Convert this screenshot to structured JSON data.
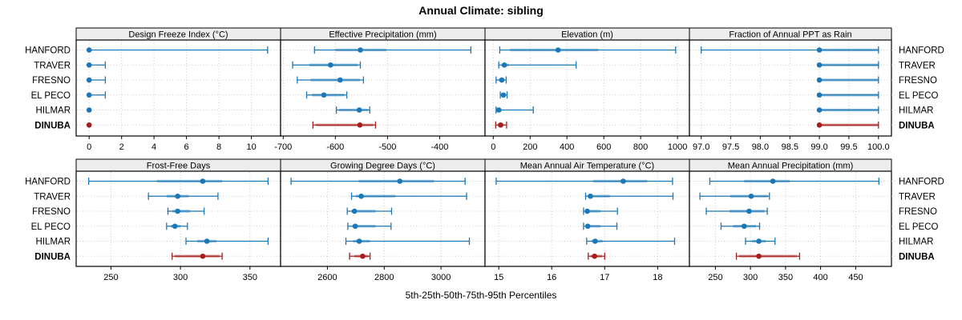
{
  "title": "Annual Climate: sibling",
  "caption": "5th-25th-50th-75th-95th Percentiles",
  "stations": [
    "HANFORD",
    "TRAVER",
    "FRESNO",
    "EL PECO",
    "HILMAR",
    "DINUBA"
  ],
  "highlight_station": "DINUBA",
  "percentiles": [
    5,
    25,
    50,
    75,
    95
  ],
  "colors": {
    "series": "#1b77b5",
    "highlight": "#a61e1e",
    "strip_bg": "#ededed",
    "panel_bg": "#ffffff",
    "border": "#000000",
    "grid": "#c9c9c9"
  },
  "chart_data": [
    {
      "type": "scatter",
      "subtype": "percentile-dot-whisker",
      "row": 0,
      "col": 0,
      "title": "Design Freeze Index (°C)",
      "xlim": [
        -0.8,
        11.8
      ],
      "xticks": [
        0,
        2,
        4,
        6,
        8,
        10
      ],
      "xtick_labels": [
        "0",
        "2",
        "4",
        "6",
        "8",
        "10"
      ],
      "series": [
        {
          "station": "HANFORD",
          "values": [
            0,
            0,
            0,
            0,
            11
          ]
        },
        {
          "station": "TRAVER",
          "values": [
            0,
            0,
            0,
            0,
            1
          ]
        },
        {
          "station": "FRESNO",
          "values": [
            0,
            0,
            0,
            0,
            1
          ]
        },
        {
          "station": "EL PECO",
          "values": [
            0,
            0,
            0,
            0,
            1
          ]
        },
        {
          "station": "HILMAR",
          "values": [
            0,
            0,
            0,
            0,
            0
          ]
        },
        {
          "station": "DINUBA",
          "values": [
            0,
            0,
            0,
            0,
            0
          ]
        }
      ]
    },
    {
      "type": "scatter",
      "subtype": "percentile-dot-whisker",
      "row": 0,
      "col": 1,
      "title": "Effective Precipitation (mm)",
      "xlim": [
        -705,
        -313
      ],
      "xticks": [
        -700,
        -600,
        -500,
        -400
      ],
      "xtick_labels": [
        "-700",
        "-600",
        "-500",
        "-400"
      ],
      "series": [
        {
          "station": "HANFORD",
          "values": [
            -640,
            -600,
            -552,
            -502,
            -340
          ]
        },
        {
          "station": "TRAVER",
          "values": [
            -682,
            -650,
            -609,
            -557,
            -552
          ]
        },
        {
          "station": "FRESNO",
          "values": [
            -673,
            -648,
            -591,
            -553,
            -546
          ]
        },
        {
          "station": "EL PECO",
          "values": [
            -655,
            -645,
            -622,
            -583,
            -578
          ]
        },
        {
          "station": "HILMAR",
          "values": [
            -598,
            -593,
            -554,
            -537,
            -534
          ]
        },
        {
          "station": "DINUBA",
          "values": [
            -643,
            -637,
            -553,
            -527,
            -523
          ]
        }
      ]
    },
    {
      "type": "scatter",
      "subtype": "percentile-dot-whisker",
      "row": 0,
      "col": 2,
      "title": "Elevation (m)",
      "xlim": [
        -45,
        1065
      ],
      "xticks": [
        0,
        200,
        400,
        600,
        800,
        1000
      ],
      "xtick_labels": [
        "0",
        "200",
        "400",
        "600",
        "800",
        "1000"
      ],
      "series": [
        {
          "station": "HANFORD",
          "values": [
            35,
            90,
            352,
            570,
            990
          ]
        },
        {
          "station": "TRAVER",
          "values": [
            30,
            48,
            60,
            85,
            450
          ]
        },
        {
          "station": "FRESNO",
          "values": [
            15,
            30,
            46,
            60,
            70
          ]
        },
        {
          "station": "EL PECO",
          "values": [
            38,
            48,
            55,
            65,
            75
          ]
        },
        {
          "station": "HILMAR",
          "values": [
            15,
            23,
            30,
            45,
            217
          ]
        },
        {
          "station": "DINUBA",
          "values": [
            13,
            25,
            40,
            55,
            72
          ]
        }
      ]
    },
    {
      "type": "scatter",
      "subtype": "percentile-dot-whisker",
      "row": 0,
      "col": 3,
      "title": "Fraction of Annual PPT as Rain",
      "xlim": [
        96.8,
        100.22
      ],
      "xticks": [
        97.0,
        97.5,
        98.0,
        98.5,
        99.0,
        99.5,
        100.0
      ],
      "xtick_labels": [
        "97.0",
        "97.5",
        "98.0",
        "98.5",
        "99.0",
        "99.5",
        "100.0"
      ],
      "series": [
        {
          "station": "HANFORD",
          "values": [
            97.0,
            99.0,
            99.0,
            100.0,
            100.0
          ]
        },
        {
          "station": "TRAVER",
          "values": [
            99.0,
            99.0,
            99.0,
            100.0,
            100.0
          ]
        },
        {
          "station": "FRESNO",
          "values": [
            99.0,
            99.0,
            99.0,
            100.0,
            100.0
          ]
        },
        {
          "station": "EL PECO",
          "values": [
            99.0,
            99.0,
            99.0,
            100.0,
            100.0
          ]
        },
        {
          "station": "HILMAR",
          "values": [
            99.0,
            99.0,
            99.0,
            100.0,
            100.0
          ]
        },
        {
          "station": "DINUBA",
          "values": [
            99.0,
            99.0,
            99.0,
            100.0,
            100.0
          ]
        }
      ]
    },
    {
      "type": "scatter",
      "subtype": "percentile-dot-whisker",
      "row": 1,
      "col": 0,
      "title": "Frost-Free Days",
      "xlim": [
        225,
        372
      ],
      "xticks": [
        250,
        300,
        350
      ],
      "xtick_labels": [
        "250",
        "300",
        "350"
      ],
      "series": [
        {
          "station": "HANFORD",
          "values": [
            234,
            283,
            316,
            330,
            363
          ]
        },
        {
          "station": "TRAVER",
          "values": [
            277,
            290,
            298,
            306,
            327
          ]
        },
        {
          "station": "FRESNO",
          "values": [
            291,
            294,
            298,
            307,
            317
          ]
        },
        {
          "station": "EL PECO",
          "values": [
            290,
            293,
            296,
            300,
            305
          ]
        },
        {
          "station": "HILMAR",
          "values": [
            304,
            312,
            319,
            326,
            363
          ]
        },
        {
          "station": "DINUBA",
          "values": [
            294,
            296,
            316,
            328,
            330
          ]
        }
      ]
    },
    {
      "type": "scatter",
      "subtype": "percentile-dot-whisker",
      "row": 1,
      "col": 1,
      "title": "Growing Degree Days (°C)",
      "xlim": [
        2435,
        3155
      ],
      "xticks": [
        2600,
        2800,
        3000
      ],
      "xtick_labels": [
        "2600",
        "2800",
        "3000"
      ],
      "series": [
        {
          "station": "HANFORD",
          "values": [
            2472,
            2710,
            2855,
            2975,
            3085
          ]
        },
        {
          "station": "TRAVER",
          "values": [
            2685,
            2700,
            2719,
            2840,
            3090
          ]
        },
        {
          "station": "FRESNO",
          "values": [
            2670,
            2685,
            2695,
            2770,
            2826
          ]
        },
        {
          "station": "EL PECO",
          "values": [
            2672,
            2688,
            2698,
            2770,
            2824
          ]
        },
        {
          "station": "HILMAR",
          "values": [
            2665,
            2690,
            2712,
            2750,
            3100
          ]
        },
        {
          "station": "DINUBA",
          "values": [
            2678,
            2695,
            2724,
            2745,
            2750
          ]
        }
      ]
    },
    {
      "type": "scatter",
      "subtype": "percentile-dot-whisker",
      "row": 1,
      "col": 2,
      "title": "Mean Annual Air Temperature (°C)",
      "xlim": [
        14.74,
        18.6
      ],
      "xticks": [
        15,
        16,
        17,
        18
      ],
      "xtick_labels": [
        "15",
        "16",
        "17",
        "18"
      ],
      "series": [
        {
          "station": "HANFORD",
          "values": [
            14.95,
            16.78,
            17.35,
            17.8,
            18.28
          ]
        },
        {
          "station": "TRAVER",
          "values": [
            16.64,
            16.68,
            16.73,
            17.1,
            18.29
          ]
        },
        {
          "station": "FRESNO",
          "values": [
            16.6,
            16.63,
            16.67,
            16.92,
            17.24
          ]
        },
        {
          "station": "EL PECO",
          "values": [
            16.6,
            16.64,
            16.68,
            16.92,
            17.23
          ]
        },
        {
          "station": "HILMAR",
          "values": [
            16.66,
            16.75,
            16.82,
            16.96,
            18.32
          ]
        },
        {
          "station": "DINUBA",
          "values": [
            16.69,
            16.73,
            16.81,
            16.95,
            17.0
          ]
        }
      ]
    },
    {
      "type": "scatter",
      "subtype": "percentile-dot-whisker",
      "row": 1,
      "col": 3,
      "title": "Mean Annual Precipitation (mm)",
      "xlim": [
        213,
        501
      ],
      "xticks": [
        250,
        300,
        350,
        400,
        450
      ],
      "xtick_labels": [
        "250",
        "300",
        "350",
        "400",
        "450"
      ],
      "series": [
        {
          "station": "HANFORD",
          "values": [
            242,
            291,
            332,
            356,
            483
          ]
        },
        {
          "station": "TRAVER",
          "values": [
            228,
            271,
            301,
            325,
            327
          ]
        },
        {
          "station": "FRESNO",
          "values": [
            237,
            270,
            298,
            320,
            324
          ]
        },
        {
          "station": "EL PECO",
          "values": [
            258,
            275,
            291,
            308,
            313
          ]
        },
        {
          "station": "HILMAR",
          "values": [
            293,
            302,
            312,
            322,
            335
          ]
        },
        {
          "station": "DINUBA",
          "values": [
            280,
            284,
            312,
            366,
            370
          ]
        }
      ]
    }
  ]
}
